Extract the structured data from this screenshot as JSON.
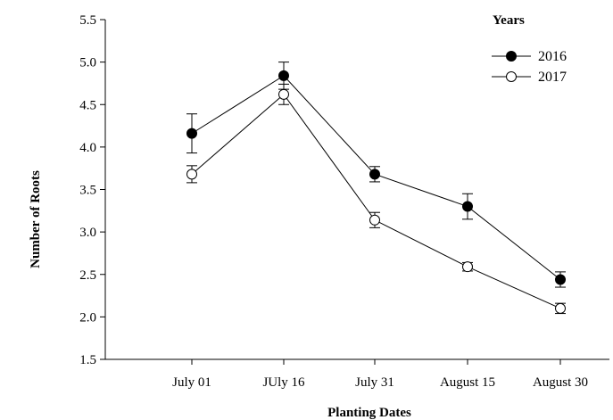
{
  "chart_data": {
    "type": "line",
    "xlabel": "Planting Dates",
    "ylabel": "Number of Roots",
    "categories": [
      "July 01",
      "JUly 16",
      "July 31",
      "August 15",
      "August 30"
    ],
    "ylim": [
      1.5,
      5.5
    ],
    "yticks": [
      "1.5",
      "2.0",
      "2.5",
      "3.0",
      "3.5",
      "4.0",
      "4.5",
      "5.0",
      "5.5"
    ],
    "grid": false,
    "legend": {
      "title": "Years",
      "position": "top-right"
    },
    "series": [
      {
        "name": "2016",
        "marker": "filled-circle",
        "color": "#000000",
        "values": [
          4.16,
          4.84,
          3.68,
          3.3,
          2.44
        ],
        "errors": [
          0.23,
          0.16,
          0.09,
          0.15,
          0.09
        ]
      },
      {
        "name": "2017",
        "marker": "open-circle",
        "color": "#000000",
        "values": [
          3.68,
          4.62,
          3.14,
          2.59,
          2.1
        ],
        "errors": [
          0.1,
          0.12,
          0.09,
          0.05,
          0.06
        ]
      }
    ]
  }
}
